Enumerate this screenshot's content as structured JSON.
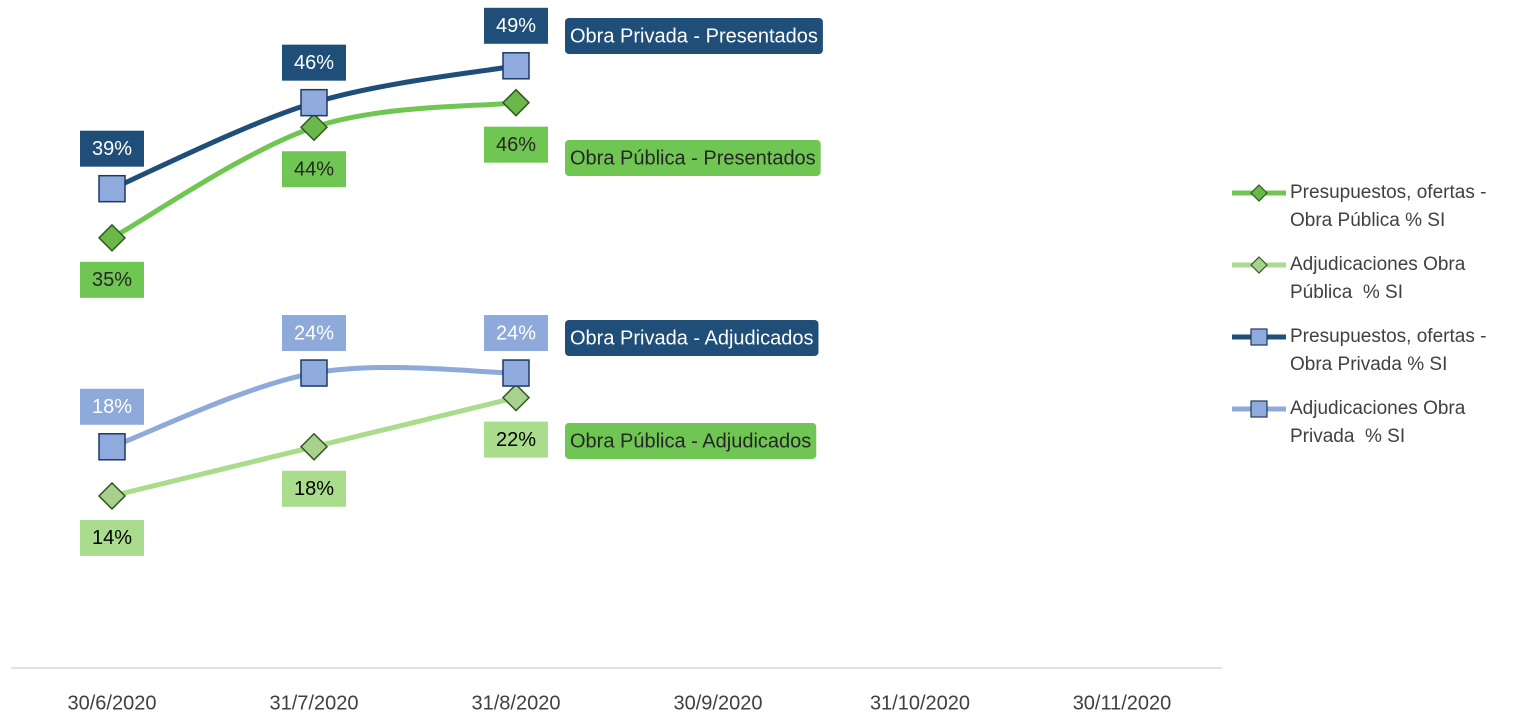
{
  "chart_data": {
    "type": "line",
    "categories": [
      "30/6/2020",
      "31/7/2020",
      "31/8/2020",
      "30/9/2020",
      "31/10/2020",
      "30/11/2020"
    ],
    "ylim": [
      0,
      50
    ],
    "series": [
      {
        "name": "Presupuestos, ofertas - Obra Pública % SI",
        "color": "#70c653",
        "marker": "diamond",
        "marker_color": "#6ab84a",
        "label_position": "below",
        "label_text_color": "#262626",
        "values": [
          35,
          44,
          46,
          null,
          null,
          null
        ],
        "value_labels": [
          "35%",
          "44%",
          "46%",
          null,
          null,
          null
        ]
      },
      {
        "name": "Adjudicaciones Obra Pública  % SI",
        "color": "#a9dc8c",
        "marker": "diamond",
        "marker_color": "#a9d18e",
        "label_position": "below",
        "label_text_color": "#000000",
        "values": [
          14,
          18,
          22,
          null,
          null,
          null
        ],
        "value_labels": [
          "14%",
          "18%",
          "22%",
          null,
          null,
          null
        ]
      },
      {
        "name": "Presupuestos, ofertas - Obra Privada % SI",
        "color": "#1f4e79",
        "marker": "square",
        "marker_color": "#8faadc",
        "label_position": "above",
        "label_text_color": "#ffffff",
        "values": [
          39,
          46,
          49,
          null,
          null,
          null
        ],
        "value_labels": [
          "39%",
          "46%",
          "49%",
          null,
          null,
          null
        ]
      },
      {
        "name": "Adjudicaciones Obra Privada  % SI",
        "color": "#8eaadb",
        "marker": "square",
        "marker_color": "#8faadc",
        "label_position": "above",
        "label_text_color": "#ffffff",
        "values": [
          18,
          24,
          24,
          null,
          null,
          null
        ],
        "value_labels": [
          "18%",
          "24%",
          "24%",
          null,
          null,
          null
        ]
      }
    ],
    "annotations": [
      {
        "text": "Obra Privada - Presentados",
        "background": "#1f4e79",
        "text_color": "#ffffff"
      },
      {
        "text": "Obra Pública - Presentados",
        "background": "#70c653",
        "text_color": "#262626"
      },
      {
        "text": "Obra Privada - Adjudicados",
        "background": "#1f4e79",
        "text_color": "#ffffff"
      },
      {
        "text": "Obra Pública - Adjudicados",
        "background": "#70c653",
        "text_color": "#262626"
      }
    ],
    "legend": "right"
  }
}
